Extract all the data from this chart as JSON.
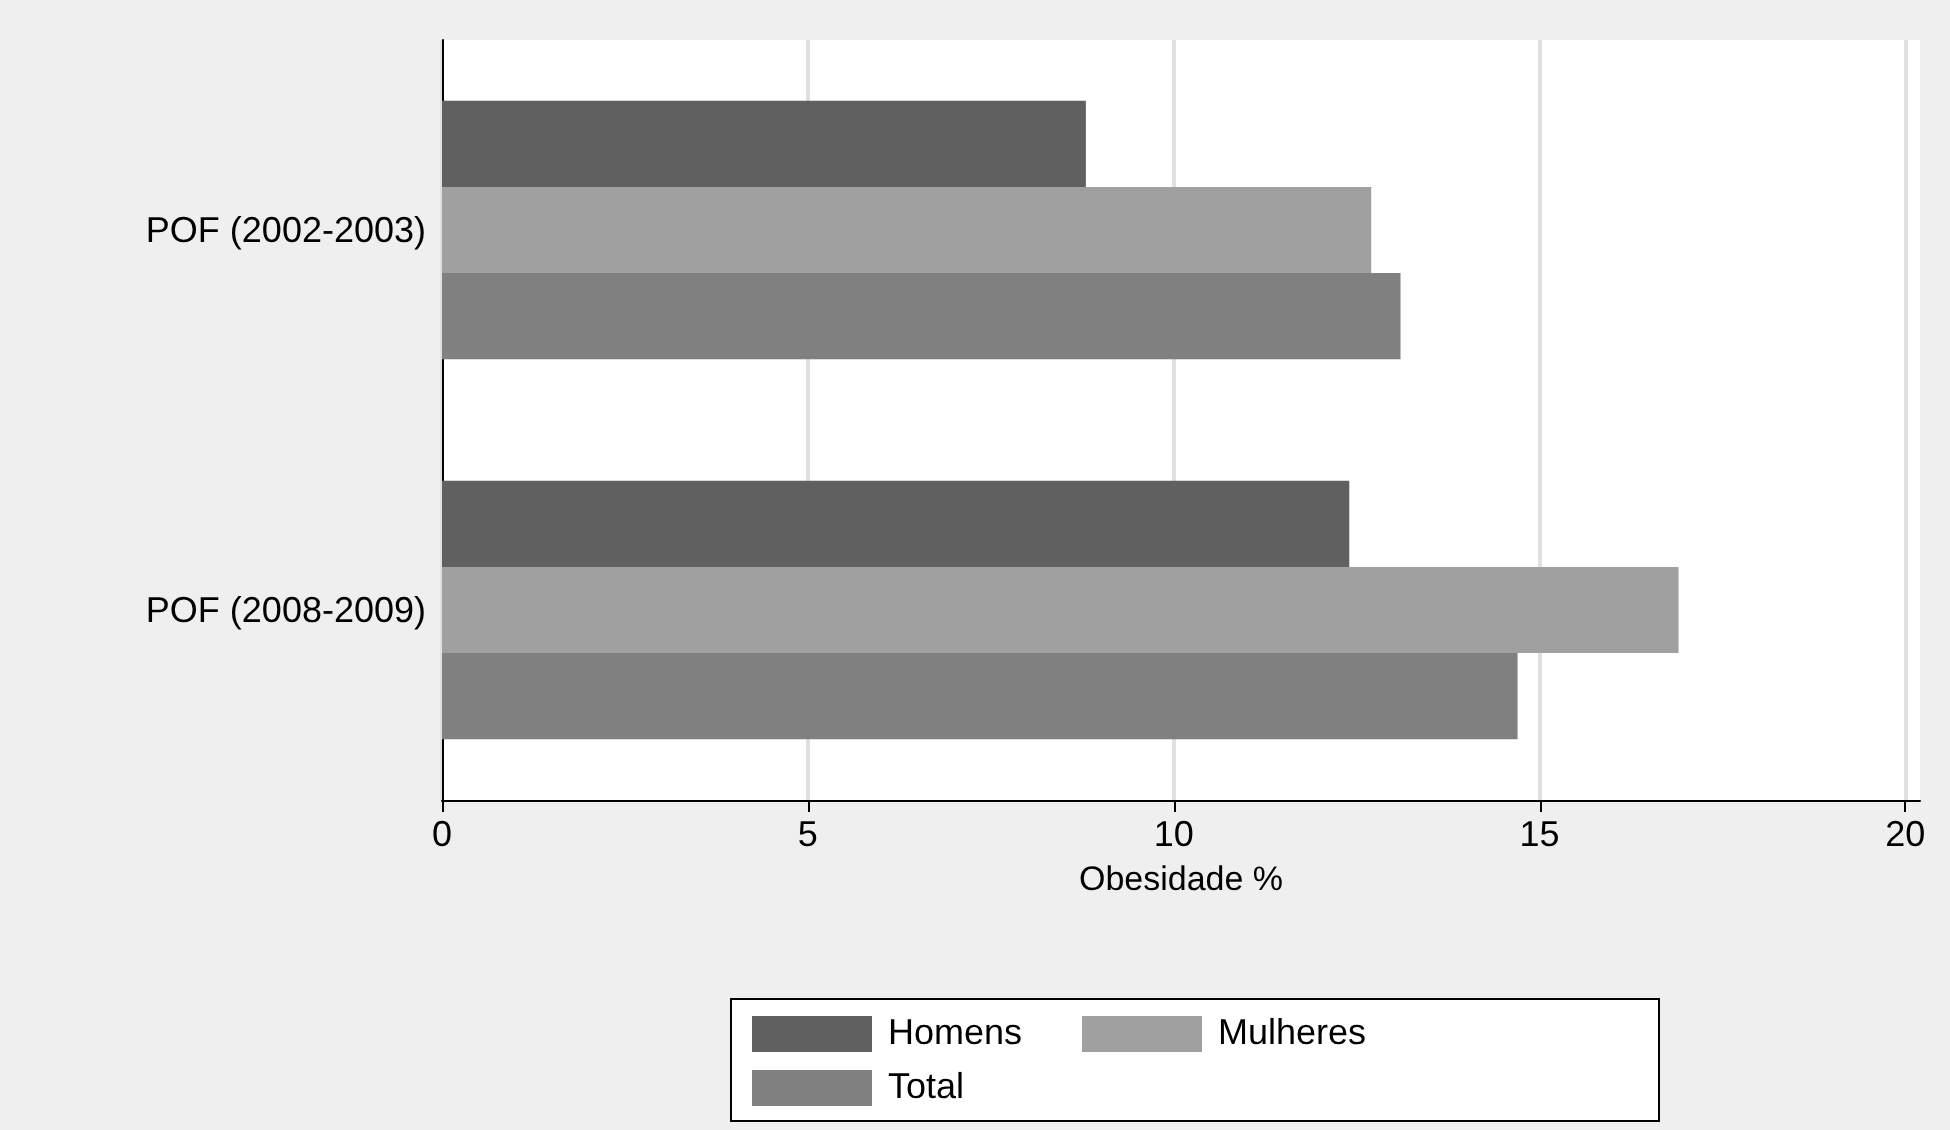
{
  "chart_data": {
    "type": "bar",
    "orientation": "horizontal",
    "xlabel": "Obesidade %",
    "categories": [
      "POF (2002-2003)",
      "POF (2008-2009)"
    ],
    "series": [
      {
        "name": "Homens",
        "color": "#606060",
        "values": [
          8.8,
          12.4
        ]
      },
      {
        "name": "Mulheres",
        "color": "#a0a0a0",
        "values": [
          12.7,
          16.9
        ]
      },
      {
        "name": "Total",
        "color": "#808080",
        "values": [
          13.1,
          14.7
        ]
      }
    ],
    "xlim": [
      0,
      20.2
    ],
    "xticks": [
      0,
      5,
      10,
      15,
      20
    ],
    "grid": "x",
    "legend": "bottom"
  }
}
